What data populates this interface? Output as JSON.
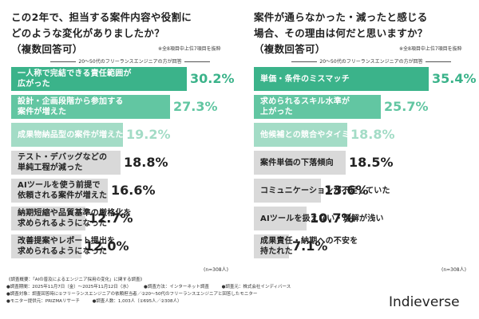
{
  "left": {
    "question_lines": [
      "この2年で、担当する案件内容や役割に",
      "どのような変化がありましたか？",
      "（複数回答可）"
    ],
    "note": "※全8項目中上位7項目を抜粋",
    "subtitle": "20〜50代のフリーランスエンジニアの方が回答",
    "n_label": "(n=308人)"
  },
  "right": {
    "question_lines": [
      "案件が通らなかった・減ったと感じる",
      "場合、その理由は何だと思いますか？",
      "（複数回答可）"
    ],
    "note": "※全8項目中上位7項目を抜粋",
    "subtitle": "20〜50代のフリーランスエンジニアの方が回答",
    "n_label": "(n=308人)"
  },
  "chart_data": [
    {
      "type": "bar",
      "categories": [
        [
          "一人称で完結できる責任範囲が",
          "広がった"
        ],
        [
          "設計・企画段階から参加する",
          "案件が増えた"
        ],
        [
          "成果物納品型の案件が増えた"
        ],
        [
          "テスト・デバッグなどの",
          "単純工程が減った"
        ],
        [
          "AIツールを使う前提で",
          "依頼される案件が増えた"
        ],
        [
          "納期短縮や品質基準の厳格化を",
          "求められるようになった"
        ],
        [
          "改善提案やレポート提出を",
          "求められるようになった"
        ]
      ],
      "values": [
        30.2,
        27.3,
        19.2,
        18.8,
        16.6,
        12.7,
        12.0
      ],
      "value_labels": [
        "30.2%",
        "27.3%",
        "19.2%",
        "18.8%",
        "16.6%",
        "12.7%",
        "12.0%"
      ],
      "unit": "%",
      "bar_colors": [
        "#3bb38a",
        "#62c6a2",
        "#a3dcc6",
        "#d9d9d9",
        "#d9d9d9",
        "#d9d9d9",
        "#d9d9d9"
      ],
      "text_colors": [
        "#ffffff",
        "#ffffff",
        "#ffffff",
        "#222222",
        "#222222",
        "#222222",
        "#222222"
      ],
      "value_colors": [
        "#3bb38a",
        "#62c6a2",
        "#a3dcc6",
        "#222222",
        "#222222",
        "#222222",
        "#222222"
      ]
    },
    {
      "type": "bar",
      "categories": [
        [
          "単価・条件のミスマッチ"
        ],
        [
          "求められるスキル水準が",
          "上がった"
        ],
        [
          "他候補との競合やタイミング"
        ],
        [
          "案件単価の下落傾向"
        ],
        [
          "コミュニケーションが不足していた"
        ],
        [
          "AIツールを扱えない・理解が浅い"
        ],
        [
          "成果責任・納期への不安を",
          "持たれた"
        ]
      ],
      "values": [
        35.4,
        25.7,
        18.8,
        18.5,
        13.6,
        10.7,
        7.1
      ],
      "value_labels": [
        "35.4%",
        "25.7%",
        "18.8%",
        "18.5%",
        "13.6%",
        "10.7%",
        "7.1%"
      ],
      "unit": "%",
      "bar_colors": [
        "#3bb38a",
        "#62c6a2",
        "#a3dcc6",
        "#d9d9d9",
        "#d9d9d9",
        "#d9d9d9",
        "#d9d9d9"
      ],
      "text_colors": [
        "#ffffff",
        "#ffffff",
        "#ffffff",
        "#222222",
        "#222222",
        "#222222",
        "#222222"
      ],
      "value_colors": [
        "#3bb38a",
        "#62c6a2",
        "#a3dcc6",
        "#222222",
        "#222222",
        "#222222",
        "#222222"
      ]
    }
  ],
  "survey": {
    "title": "《調査概要：「AIの普及によるエンジニア採用の変化」に関する調査》",
    "period": "●調査期間：2025年11月7日（金）〜2025年11月12日（水）",
    "method": "●調査方法：インターネット調査",
    "organizer": "●調査元：株式会社インディバース",
    "target": "●調査対象：調査回答時に①フリーランスエンジニアの依頼担当者／②20〜50代のフリーランスエンジニアと回答したモニター",
    "provider": "●モニター提供元：PRIZMAリサーチ",
    "respondents": "●調査人数：1,003人（①695人／②308人）"
  },
  "logo": "Indieverse"
}
